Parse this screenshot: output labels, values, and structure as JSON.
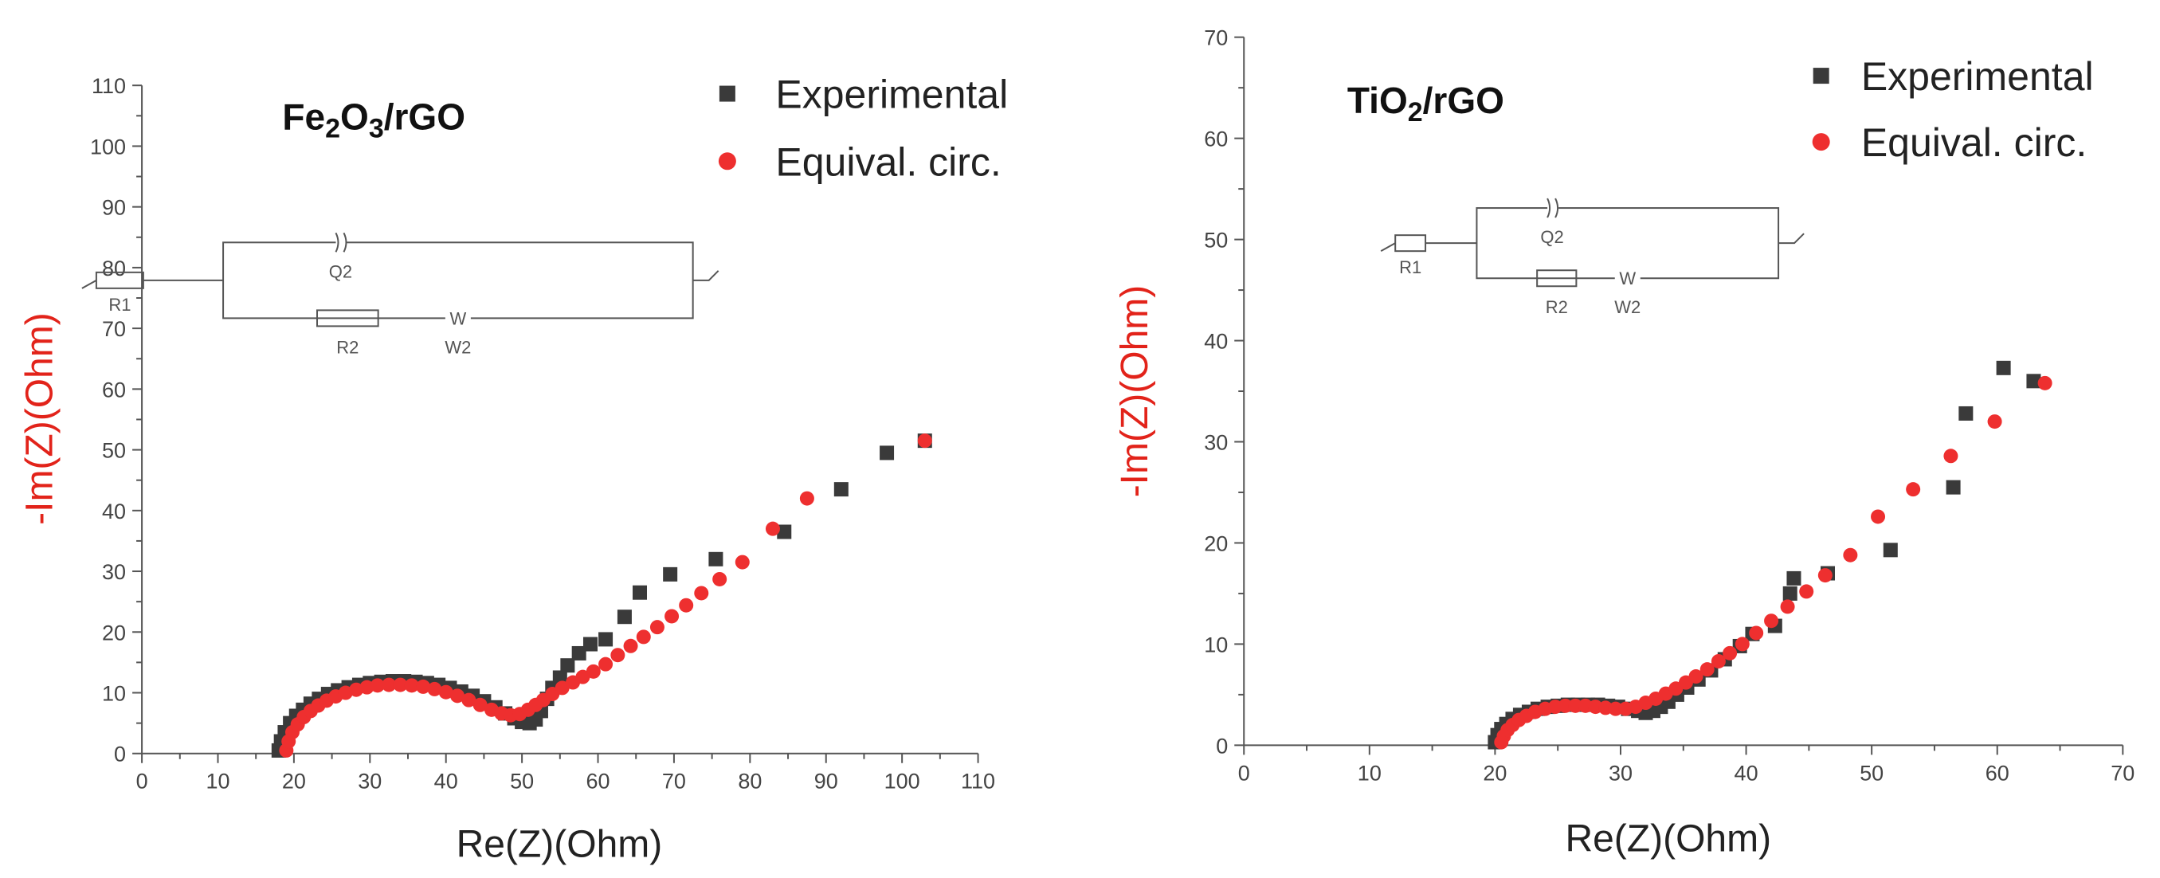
{
  "charts_meta": {
    "legend": {
      "experimental": "Experimental",
      "equivalent": "Equival. circ."
    }
  },
  "chart_data": [
    {
      "type": "scatter",
      "title_parts": [
        "Fe",
        "2",
        "O",
        "3",
        "/rGO"
      ],
      "xlabel": "Re(Z)(Ohm)",
      "ylabel": "-Im(Z)(Ohm)",
      "xlim": [
        0,
        110
      ],
      "ylim": [
        0,
        110
      ],
      "x_ticks": [
        "0",
        "10",
        "20",
        "30",
        "40",
        "50",
        "60",
        "70",
        "80",
        "90",
        "100",
        "110"
      ],
      "y_ticks": [
        "0",
        "10",
        "20",
        "30",
        "40",
        "50",
        "60",
        "70",
        "80",
        "90",
        "100",
        "110"
      ],
      "grid": false,
      "legend_position": "top-right",
      "circuit_labels": {
        "r1": "R1",
        "q2": "Q2",
        "r2": "R2",
        "w": "W",
        "w2": "W2"
      },
      "series": [
        {
          "name": "Experimental",
          "marker": "square",
          "color": "#3a3a3a",
          "points": [
            [
              18,
              0.5
            ],
            [
              18.3,
              2
            ],
            [
              18.8,
              3.5
            ],
            [
              19.5,
              5
            ],
            [
              20.3,
              6.2
            ],
            [
              21.2,
              7.2
            ],
            [
              22.2,
              8.2
            ],
            [
              23.3,
              9
            ],
            [
              24.5,
              9.8
            ],
            [
              25.8,
              10.4
            ],
            [
              27.2,
              10.9
            ],
            [
              28.6,
              11.3
            ],
            [
              30,
              11.6
            ],
            [
              31.5,
              11.8
            ],
            [
              33,
              11.9
            ],
            [
              34.5,
              11.9
            ],
            [
              36,
              11.8
            ],
            [
              37.5,
              11.6
            ],
            [
              39,
              11.3
            ],
            [
              40.5,
              10.8
            ],
            [
              42,
              10.2
            ],
            [
              43.5,
              9.5
            ],
            [
              45,
              8.6
            ],
            [
              46.5,
              7.6
            ],
            [
              47.8,
              6.6
            ],
            [
              49,
              5.8
            ],
            [
              50,
              5.2
            ],
            [
              51,
              5
            ],
            [
              51.8,
              5.6
            ],
            [
              52.5,
              7
            ],
            [
              53.3,
              9
            ],
            [
              54,
              10.8
            ],
            [
              55,
              12.5
            ],
            [
              56,
              14.5
            ],
            [
              57.5,
              16.5
            ],
            [
              59,
              18
            ],
            [
              61,
              18.8
            ],
            [
              63.5,
              22.5
            ],
            [
              65.5,
              26.5
            ],
            [
              69.5,
              29.5
            ],
            [
              75.5,
              32
            ],
            [
              84.5,
              36.5
            ],
            [
              92,
              43.5
            ],
            [
              98,
              49.5
            ],
            [
              103,
              51.5
            ]
          ]
        },
        {
          "name": "Equival. circ.",
          "marker": "circle",
          "color": "#ee2f2f",
          "points": [
            [
              19,
              0.5
            ],
            [
              19.3,
              2
            ],
            [
              19.8,
              3.5
            ],
            [
              20.5,
              4.8
            ],
            [
              21.3,
              6
            ],
            [
              22.2,
              7
            ],
            [
              23.2,
              7.9
            ],
            [
              24.3,
              8.7
            ],
            [
              25.5,
              9.4
            ],
            [
              26.8,
              10
            ],
            [
              28.2,
              10.5
            ],
            [
              29.6,
              10.9
            ],
            [
              31,
              11.2
            ],
            [
              32.5,
              11.3
            ],
            [
              34,
              11.3
            ],
            [
              35.5,
              11.2
            ],
            [
              37,
              11
            ],
            [
              38.5,
              10.6
            ],
            [
              40,
              10.1
            ],
            [
              41.5,
              9.5
            ],
            [
              43,
              8.8
            ],
            [
              44.5,
              8
            ],
            [
              46,
              7.2
            ],
            [
              47.3,
              6.6
            ],
            [
              48.5,
              6.3
            ],
            [
              49.7,
              6.5
            ],
            [
              50.8,
              7.2
            ],
            [
              51.8,
              8
            ],
            [
              52.8,
              8.8
            ],
            [
              54,
              9.8
            ],
            [
              55.3,
              10.8
            ],
            [
              56.7,
              11.7
            ],
            [
              58,
              12.6
            ],
            [
              59.4,
              13.5
            ],
            [
              61,
              14.7
            ],
            [
              62.6,
              16.2
            ],
            [
              64.3,
              17.7
            ],
            [
              66,
              19.2
            ],
            [
              67.8,
              20.8
            ],
            [
              69.7,
              22.6
            ],
            [
              71.6,
              24.4
            ],
            [
              73.6,
              26.4
            ],
            [
              76,
              28.7
            ],
            [
              79,
              31.5
            ],
            [
              83,
              37
            ],
            [
              87.5,
              42
            ],
            [
              103,
              51.5
            ]
          ]
        }
      ]
    },
    {
      "type": "scatter",
      "title_parts": [
        "TiO",
        "2",
        "/rGO"
      ],
      "xlabel": "Re(Z)(Ohm)",
      "ylabel": "-Im(Z)(Ohm)",
      "xlim": [
        0,
        70
      ],
      "ylim": [
        0,
        70
      ],
      "x_ticks": [
        "0",
        "10",
        "20",
        "30",
        "40",
        "50",
        "60",
        "70"
      ],
      "y_ticks": [
        "0",
        "10",
        "20",
        "30",
        "40",
        "50",
        "60",
        "70"
      ],
      "grid": false,
      "legend_position": "top-right",
      "circuit_labels": {
        "r1": "R1",
        "q2": "Q2",
        "r2": "R2",
        "w": "W",
        "w2": "W2"
      },
      "series": [
        {
          "name": "Experimental",
          "marker": "square",
          "color": "#3a3a3a",
          "points": [
            [
              20,
              0.3
            ],
            [
              20.2,
              1
            ],
            [
              20.5,
              1.6
            ],
            [
              20.9,
              2.1
            ],
            [
              21.4,
              2.6
            ],
            [
              22,
              3
            ],
            [
              22.7,
              3.3
            ],
            [
              23.4,
              3.6
            ],
            [
              24.2,
              3.8
            ],
            [
              25,
              3.9
            ],
            [
              25.8,
              4
            ],
            [
              26.6,
              4
            ],
            [
              27.4,
              4
            ],
            [
              28.2,
              4
            ],
            [
              29,
              3.9
            ],
            [
              29.8,
              3.8
            ],
            [
              30.6,
              3.6
            ],
            [
              31.4,
              3.4
            ],
            [
              32,
              3.2
            ],
            [
              32.6,
              3.4
            ],
            [
              33.2,
              3.8
            ],
            [
              33.8,
              4.3
            ],
            [
              34.5,
              5
            ],
            [
              35.3,
              5.7
            ],
            [
              36.2,
              6.5
            ],
            [
              37.2,
              7.4
            ],
            [
              38.3,
              8.5
            ],
            [
              39.5,
              9.8
            ],
            [
              40.5,
              11
            ],
            [
              42.3,
              11.8
            ],
            [
              43.5,
              15
            ],
            [
              43.8,
              16.5
            ],
            [
              46.5,
              17
            ],
            [
              51.5,
              19.3
            ],
            [
              56.5,
              25.5
            ],
            [
              57.5,
              32.8
            ],
            [
              60.5,
              37.3
            ],
            [
              62.9,
              36
            ]
          ]
        },
        {
          "name": "Equival. circ.",
          "marker": "circle",
          "color": "#ee2f2f",
          "points": [
            [
              20.5,
              0.3
            ],
            [
              20.7,
              0.9
            ],
            [
              21,
              1.5
            ],
            [
              21.4,
              2
            ],
            [
              21.9,
              2.5
            ],
            [
              22.5,
              2.9
            ],
            [
              23.2,
              3.3
            ],
            [
              24,
              3.6
            ],
            [
              24.8,
              3.8
            ],
            [
              25.6,
              3.9
            ],
            [
              26.4,
              3.9
            ],
            [
              27.2,
              3.9
            ],
            [
              28,
              3.8
            ],
            [
              28.8,
              3.7
            ],
            [
              29.6,
              3.6
            ],
            [
              30.4,
              3.6
            ],
            [
              31.2,
              3.8
            ],
            [
              32,
              4.2
            ],
            [
              32.8,
              4.6
            ],
            [
              33.6,
              5.1
            ],
            [
              34.4,
              5.6
            ],
            [
              35.2,
              6.2
            ],
            [
              36,
              6.8
            ],
            [
              36.9,
              7.5
            ],
            [
              37.8,
              8.3
            ],
            [
              38.7,
              9.1
            ],
            [
              39.7,
              10
            ],
            [
              40.8,
              11.1
            ],
            [
              42,
              12.3
            ],
            [
              43.3,
              13.7
            ],
            [
              44.8,
              15.2
            ],
            [
              46.3,
              16.8
            ],
            [
              48.3,
              18.8
            ],
            [
              50.5,
              22.6
            ],
            [
              53.3,
              25.3
            ],
            [
              56.3,
              28.6
            ],
            [
              59.8,
              32
            ],
            [
              63.8,
              35.8
            ]
          ]
        }
      ]
    }
  ]
}
